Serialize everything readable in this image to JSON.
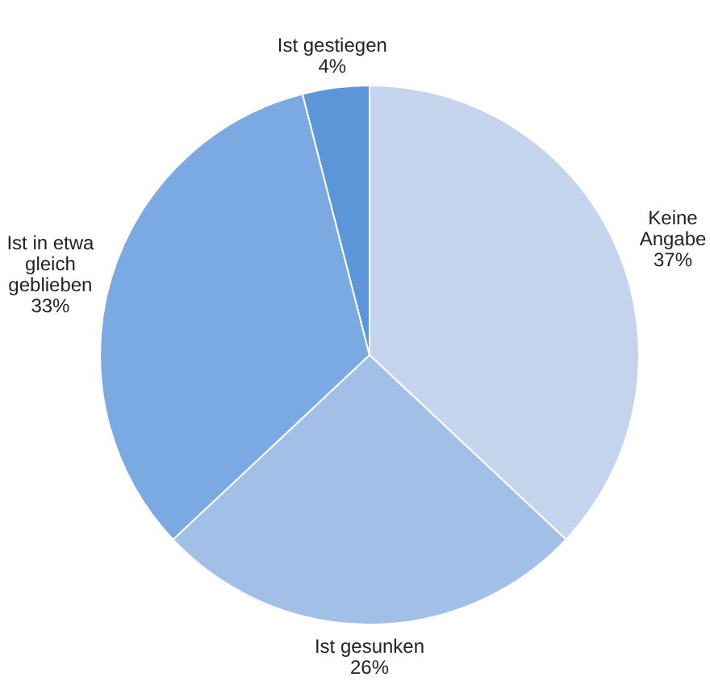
{
  "chart_data": {
    "type": "pie",
    "categories": [
      "Keine Angabe",
      "Ist gesunken",
      "Ist in etwa gleich geblieben",
      "Ist gestiegen"
    ],
    "values": [
      37,
      26,
      33,
      4
    ],
    "value_labels": [
      "37%",
      "26%",
      "33%",
      "4%"
    ],
    "colors": [
      "#c3d4ec",
      "#a2bfe8",
      "#7ba9e1",
      "#5b97d8"
    ],
    "legend": false
  }
}
